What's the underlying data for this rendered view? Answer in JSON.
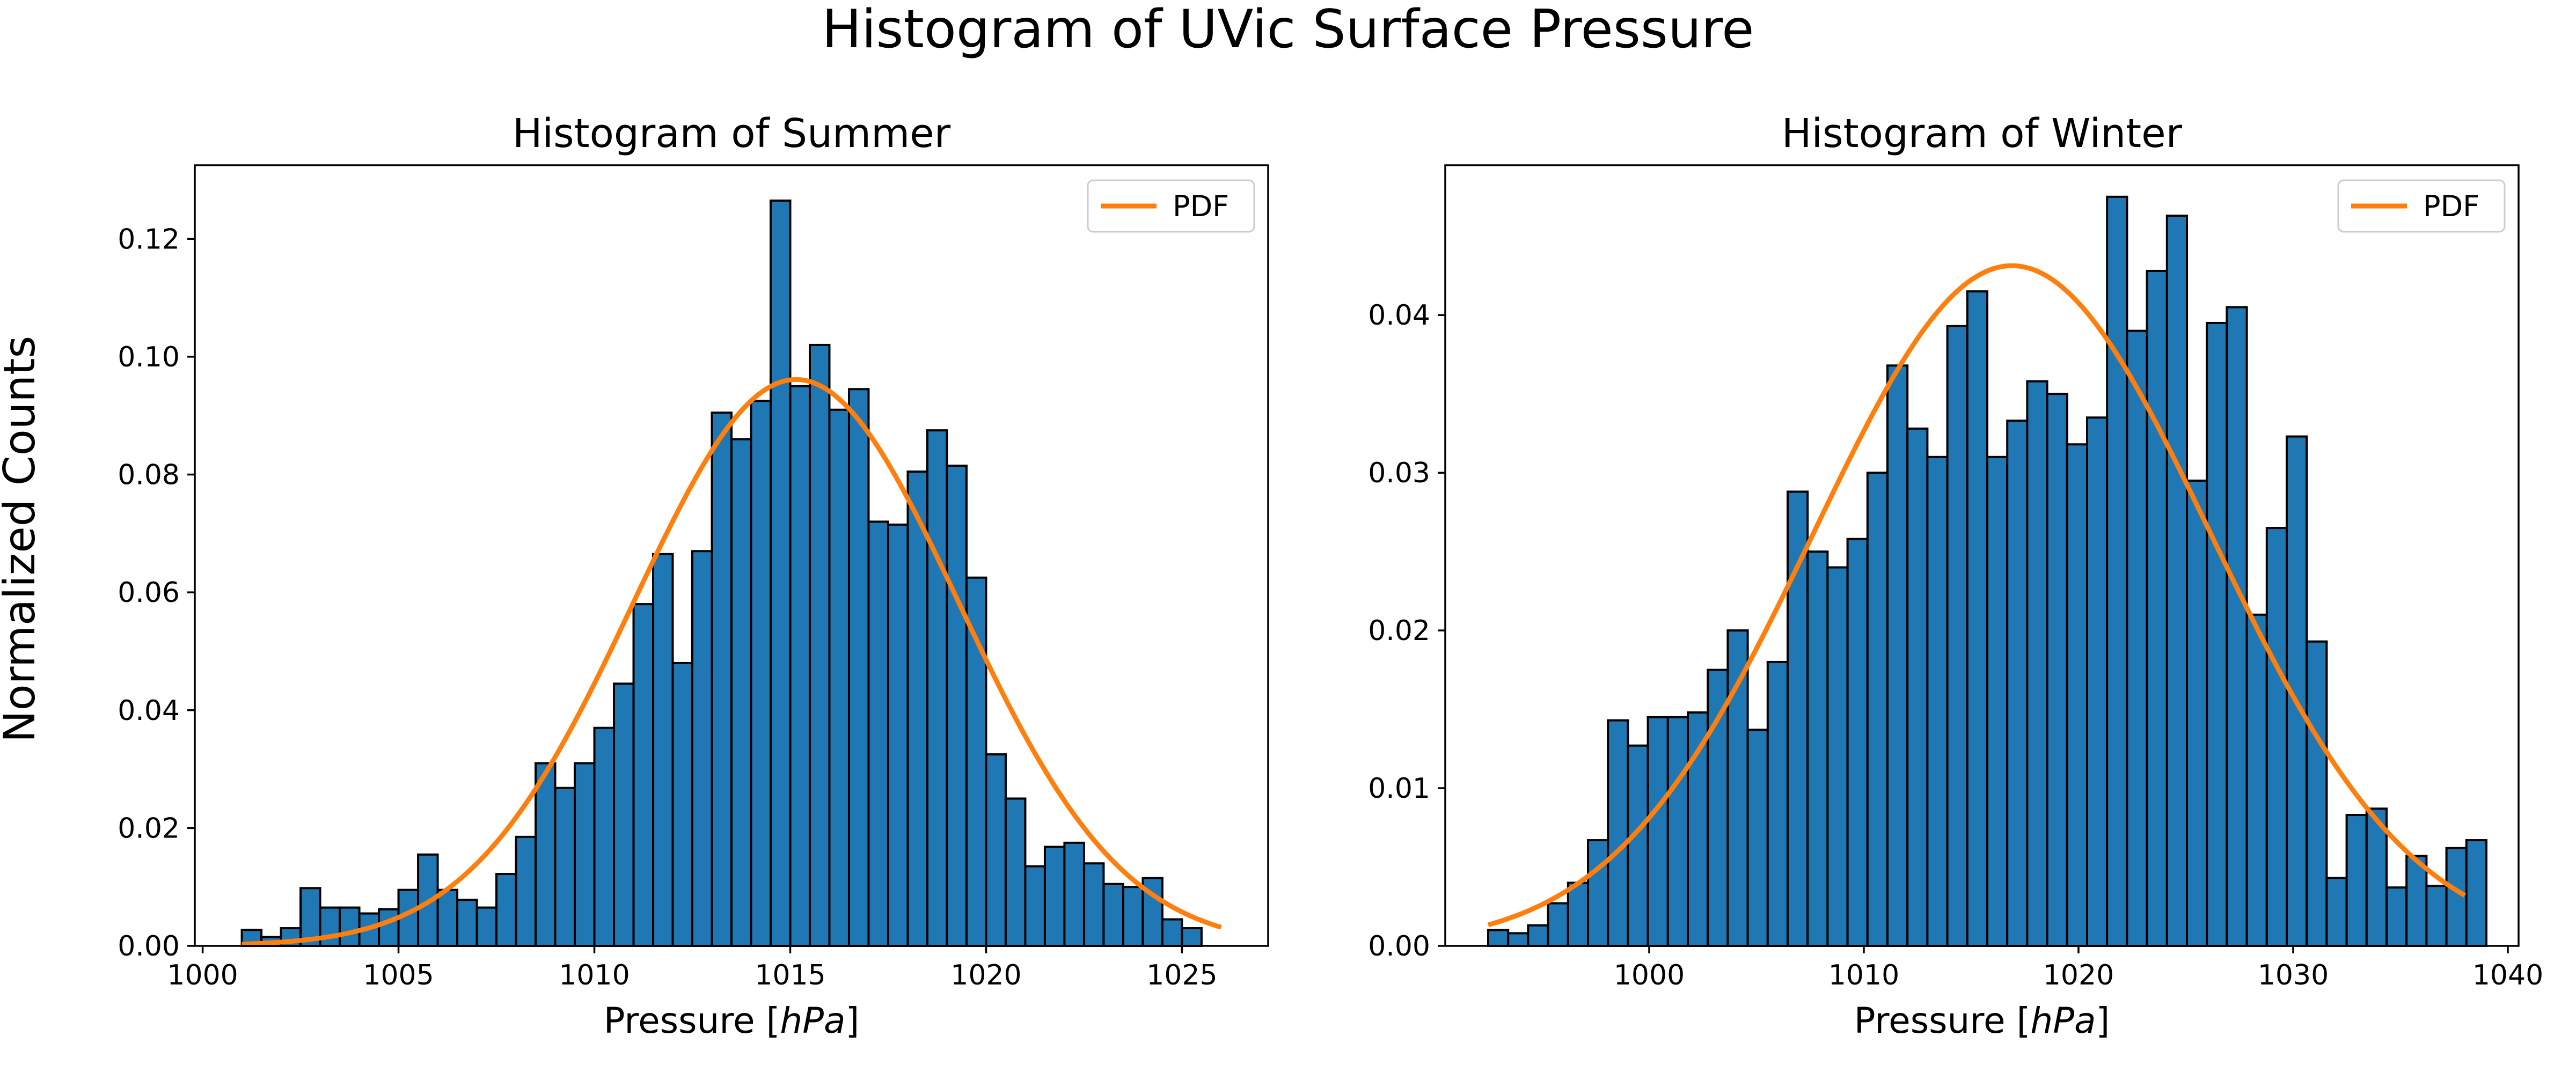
{
  "figure": {
    "title": "Histogram of UVic Surface Pressure",
    "ylabel": "Normalized Counts"
  },
  "chart_data": [
    {
      "type": "bar",
      "title": "Histogram of Summer",
      "xlabel": "Pressure [hPa]",
      "xlabel_parts": {
        "before": "Pressure [",
        "italic": "hPa",
        "after": "]"
      },
      "ylabel": "",
      "xlim": [
        999.8,
        1027.2
      ],
      "ylim": [
        0,
        0.1325
      ],
      "xticks": [
        1000,
        1005,
        1010,
        1015,
        1020,
        1025
      ],
      "yticks": [
        0.0,
        0.02,
        0.04,
        0.06,
        0.08,
        0.1,
        0.12
      ],
      "ytick_labels": [
        "0.00",
        "0.02",
        "0.04",
        "0.06",
        "0.08",
        "0.10",
        "0.12"
      ],
      "bin_start": 1001.0,
      "bin_width": 0.5,
      "values": [
        0.0027,
        0.0015,
        0.003,
        0.0098,
        0.0065,
        0.0065,
        0.0055,
        0.0062,
        0.0095,
        0.0155,
        0.0095,
        0.0078,
        0.0065,
        0.0122,
        0.0185,
        0.031,
        0.0268,
        0.031,
        0.037,
        0.0445,
        0.058,
        0.0665,
        0.048,
        0.067,
        0.0905,
        0.086,
        0.0925,
        0.1265,
        0.095,
        0.102,
        0.091,
        0.0945,
        0.072,
        0.0715,
        0.0805,
        0.0875,
        0.0815,
        0.0625,
        0.0325,
        0.025,
        0.0135,
        0.0168,
        0.0175,
        0.014,
        0.0105,
        0.01,
        0.0115,
        0.0045,
        0.003
      ],
      "pdf": {
        "name": "PDF",
        "mean": 1015.15,
        "std": 4.15,
        "xrange": [
          1001.0,
          1026.0
        ]
      },
      "legend": {
        "entries": [
          "PDF"
        ],
        "placement": "top-right"
      }
    },
    {
      "type": "bar",
      "title": "Histogram of Winter",
      "xlabel": "Pressure [hPa]",
      "xlabel_parts": {
        "before": "Pressure [",
        "italic": "hPa",
        "after": "]"
      },
      "ylabel": "",
      "xlim": [
        990.5,
        1040.5
      ],
      "ylim": [
        0,
        0.0495
      ],
      "xticks": [
        1000,
        1010,
        1020,
        1030,
        1040
      ],
      "yticks": [
        0.0,
        0.01,
        0.02,
        0.03,
        0.04
      ],
      "ytick_labels": [
        "0.00",
        "0.01",
        "0.02",
        "0.03",
        "0.04"
      ],
      "bin_start": 992.5,
      "bin_width": 0.93,
      "values": [
        0.001,
        0.0008,
        0.0013,
        0.0027,
        0.004,
        0.0067,
        0.0143,
        0.0127,
        0.0145,
        0.0145,
        0.0148,
        0.0175,
        0.02,
        0.0137,
        0.018,
        0.0288,
        0.025,
        0.024,
        0.0258,
        0.03,
        0.0368,
        0.0328,
        0.031,
        0.0393,
        0.0415,
        0.031,
        0.0333,
        0.0358,
        0.035,
        0.0318,
        0.0335,
        0.0475,
        0.039,
        0.0428,
        0.0463,
        0.0295,
        0.0395,
        0.0405,
        0.021,
        0.0265,
        0.0323,
        0.0193,
        0.0043,
        0.0083,
        0.0087,
        0.0037,
        0.0057,
        0.0038,
        0.0062,
        0.0067
      ],
      "pdf": {
        "name": "PDF",
        "mean": 1016.9,
        "std": 9.25,
        "xrange": [
          992.5,
          1038.0
        ]
      },
      "legend": {
        "entries": [
          "PDF"
        ],
        "placement": "top-right"
      }
    }
  ]
}
